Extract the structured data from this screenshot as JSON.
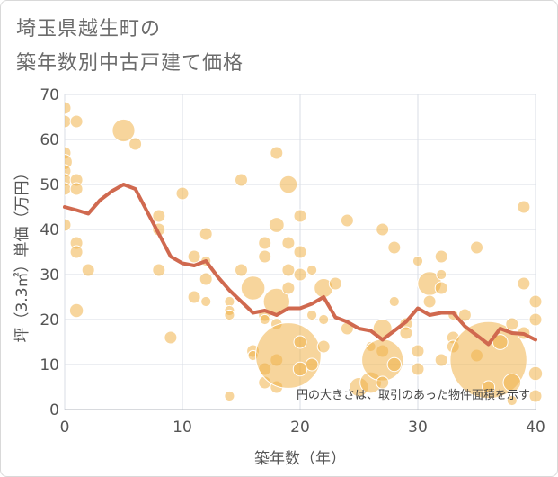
{
  "title_line1": "埼玉県越生町の",
  "title_line2": "築年数別中古戸建て価格",
  "chart_data": {
    "type": "scatter",
    "xlabel": "築年数（年）",
    "ylabel": "坪（3.3㎡）単価（万円）",
    "xlim": [
      0,
      40
    ],
    "ylim": [
      0,
      70
    ],
    "xticks": [
      "0",
      "10",
      "20",
      "30",
      "40"
    ],
    "yticks": [
      "0",
      "10",
      "20",
      "30",
      "40",
      "50",
      "60",
      "70"
    ],
    "annotation": "円の大きさは、取引のあった物件面積を示す",
    "colors": {
      "bubble": "#f0b24a",
      "line": "#d0694f",
      "grid": "#d8dde6"
    },
    "points": [
      {
        "x": 0,
        "y": 67,
        "s": 1
      },
      {
        "x": 0,
        "y": 64,
        "s": 1
      },
      {
        "x": 0,
        "y": 57,
        "s": 1
      },
      {
        "x": 0,
        "y": 55,
        "s": 1.2
      },
      {
        "x": 0,
        "y": 53,
        "s": 1
      },
      {
        "x": 0,
        "y": 51,
        "s": 1
      },
      {
        "x": 0,
        "y": 49,
        "s": 1
      },
      {
        "x": 0,
        "y": 41,
        "s": 1
      },
      {
        "x": 1,
        "y": 64,
        "s": 1
      },
      {
        "x": 1,
        "y": 51,
        "s": 1
      },
      {
        "x": 1,
        "y": 49,
        "s": 1
      },
      {
        "x": 1,
        "y": 37,
        "s": 1
      },
      {
        "x": 1,
        "y": 35,
        "s": 1
      },
      {
        "x": 1,
        "y": 22,
        "s": 1.1
      },
      {
        "x": 2,
        "y": 31,
        "s": 1
      },
      {
        "x": 5,
        "y": 62,
        "s": 1.8
      },
      {
        "x": 6,
        "y": 59,
        "s": 1
      },
      {
        "x": 8,
        "y": 43,
        "s": 1
      },
      {
        "x": 8,
        "y": 40,
        "s": 1
      },
      {
        "x": 8,
        "y": 31,
        "s": 1
      },
      {
        "x": 9,
        "y": 16,
        "s": 1
      },
      {
        "x": 10,
        "y": 48,
        "s": 1
      },
      {
        "x": 11,
        "y": 34,
        "s": 1
      },
      {
        "x": 11,
        "y": 25,
        "s": 1
      },
      {
        "x": 12,
        "y": 39,
        "s": 1
      },
      {
        "x": 12,
        "y": 33,
        "s": 0.8
      },
      {
        "x": 12,
        "y": 29,
        "s": 1
      },
      {
        "x": 12,
        "y": 24,
        "s": 0.8
      },
      {
        "x": 14,
        "y": 24,
        "s": 0.8
      },
      {
        "x": 14,
        "y": 22,
        "s": 0.8
      },
      {
        "x": 14,
        "y": 21,
        "s": 0.8
      },
      {
        "x": 14,
        "y": 3,
        "s": 0.8
      },
      {
        "x": 15,
        "y": 51,
        "s": 1
      },
      {
        "x": 15,
        "y": 31,
        "s": 1
      },
      {
        "x": 16,
        "y": 27,
        "s": 1.9
      },
      {
        "x": 16,
        "y": 13,
        "s": 1
      },
      {
        "x": 16,
        "y": 12,
        "s": 0.8
      },
      {
        "x": 17,
        "y": 37,
        "s": 1
      },
      {
        "x": 17,
        "y": 34,
        "s": 1
      },
      {
        "x": 17,
        "y": 21,
        "s": 1
      },
      {
        "x": 17,
        "y": 20,
        "s": 0.8
      },
      {
        "x": 17,
        "y": 9,
        "s": 1
      },
      {
        "x": 17,
        "y": 6,
        "s": 1
      },
      {
        "x": 18,
        "y": 57,
        "s": 1
      },
      {
        "x": 18,
        "y": 41,
        "s": 1.2
      },
      {
        "x": 18,
        "y": 24,
        "s": 2.1
      },
      {
        "x": 18,
        "y": 19,
        "s": 0.9
      },
      {
        "x": 18,
        "y": 11,
        "s": 1
      },
      {
        "x": 18,
        "y": 5,
        "s": 1
      },
      {
        "x": 19,
        "y": 50,
        "s": 1.4
      },
      {
        "x": 19,
        "y": 37,
        "s": 1
      },
      {
        "x": 19,
        "y": 31,
        "s": 1
      },
      {
        "x": 19,
        "y": 27,
        "s": 1
      },
      {
        "x": 19,
        "y": 12,
        "s": 5.2
      },
      {
        "x": 20,
        "y": 43,
        "s": 1
      },
      {
        "x": 20,
        "y": 35,
        "s": 1
      },
      {
        "x": 20,
        "y": 30,
        "s": 1
      },
      {
        "x": 20,
        "y": 15,
        "s": 1
      },
      {
        "x": 20,
        "y": 9,
        "s": 1.1
      },
      {
        "x": 21,
        "y": 31,
        "s": 0.8
      },
      {
        "x": 21,
        "y": 21,
        "s": 0.8
      },
      {
        "x": 21,
        "y": 10,
        "s": 1
      },
      {
        "x": 22,
        "y": 27,
        "s": 1.5
      },
      {
        "x": 22,
        "y": 20,
        "s": 0.8
      },
      {
        "x": 22,
        "y": 14,
        "s": 1
      },
      {
        "x": 23,
        "y": 28,
        "s": 1
      },
      {
        "x": 24,
        "y": 42,
        "s": 1
      },
      {
        "x": 24,
        "y": 18,
        "s": 1
      },
      {
        "x": 25,
        "y": 5,
        "s": 1.5
      },
      {
        "x": 26,
        "y": 14,
        "s": 0.8
      },
      {
        "x": 26,
        "y": 6,
        "s": 1.7
      },
      {
        "x": 27,
        "y": 40,
        "s": 1
      },
      {
        "x": 27,
        "y": 18,
        "s": 1.5
      },
      {
        "x": 27,
        "y": 13,
        "s": 1
      },
      {
        "x": 27,
        "y": 11,
        "s": 3.3
      },
      {
        "x": 27,
        "y": 6,
        "s": 1
      },
      {
        "x": 28,
        "y": 36,
        "s": 1
      },
      {
        "x": 28,
        "y": 24,
        "s": 0.8
      },
      {
        "x": 28,
        "y": 10,
        "s": 1.1
      },
      {
        "x": 29,
        "y": 19,
        "s": 1
      },
      {
        "x": 29,
        "y": 17,
        "s": 1
      },
      {
        "x": 30,
        "y": 33,
        "s": 0.8
      },
      {
        "x": 30,
        "y": 13,
        "s": 1
      },
      {
        "x": 30,
        "y": 9,
        "s": 1
      },
      {
        "x": 31,
        "y": 28,
        "s": 1.9
      },
      {
        "x": 31,
        "y": 24,
        "s": 1
      },
      {
        "x": 32,
        "y": 34,
        "s": 1
      },
      {
        "x": 32,
        "y": 30,
        "s": 0.8
      },
      {
        "x": 32,
        "y": 27,
        "s": 1
      },
      {
        "x": 32,
        "y": 11,
        "s": 1
      },
      {
        "x": 33,
        "y": 21,
        "s": 0.8
      },
      {
        "x": 33,
        "y": 16,
        "s": 1
      },
      {
        "x": 33,
        "y": 14,
        "s": 1
      },
      {
        "x": 34,
        "y": 21,
        "s": 1
      },
      {
        "x": 35,
        "y": 36,
        "s": 1
      },
      {
        "x": 35,
        "y": 12,
        "s": 1
      },
      {
        "x": 36,
        "y": 11,
        "s": 6.1
      },
      {
        "x": 36,
        "y": 5,
        "s": 1
      },
      {
        "x": 37,
        "y": 15,
        "s": 1.2
      },
      {
        "x": 38,
        "y": 19,
        "s": 1
      },
      {
        "x": 38,
        "y": 6,
        "s": 1.4
      },
      {
        "x": 38,
        "y": 2,
        "s": 0.8
      },
      {
        "x": 39,
        "y": 45,
        "s": 1
      },
      {
        "x": 39,
        "y": 28,
        "s": 1
      },
      {
        "x": 39,
        "y": 17,
        "s": 1
      },
      {
        "x": 40,
        "y": 24,
        "s": 1
      },
      {
        "x": 40,
        "y": 20,
        "s": 1
      },
      {
        "x": 40,
        "y": 8,
        "s": 1.1
      },
      {
        "x": 40,
        "y": 3,
        "s": 1
      }
    ],
    "trend": {
      "x": [
        0,
        1,
        2,
        3,
        4,
        5,
        6,
        7,
        8,
        9,
        10,
        11,
        12,
        13,
        14,
        15,
        16,
        17,
        18,
        19,
        20,
        21,
        22,
        23,
        24,
        25,
        26,
        27,
        28,
        29,
        30,
        31,
        32,
        33,
        34,
        35,
        36,
        37,
        38,
        39,
        40
      ],
      "y": [
        45,
        44.3,
        43.5,
        46.5,
        48.5,
        50,
        49,
        44,
        39,
        34,
        32.5,
        32,
        33,
        29.5,
        26.5,
        24,
        21.5,
        22,
        21,
        22.5,
        22.5,
        23.5,
        25,
        20.5,
        19.5,
        18,
        17.5,
        15.5,
        17.5,
        19.5,
        22.5,
        21,
        21.5,
        21.5,
        18.5,
        16.5,
        14.5,
        18,
        17,
        16.8,
        15.5
      ]
    }
  }
}
